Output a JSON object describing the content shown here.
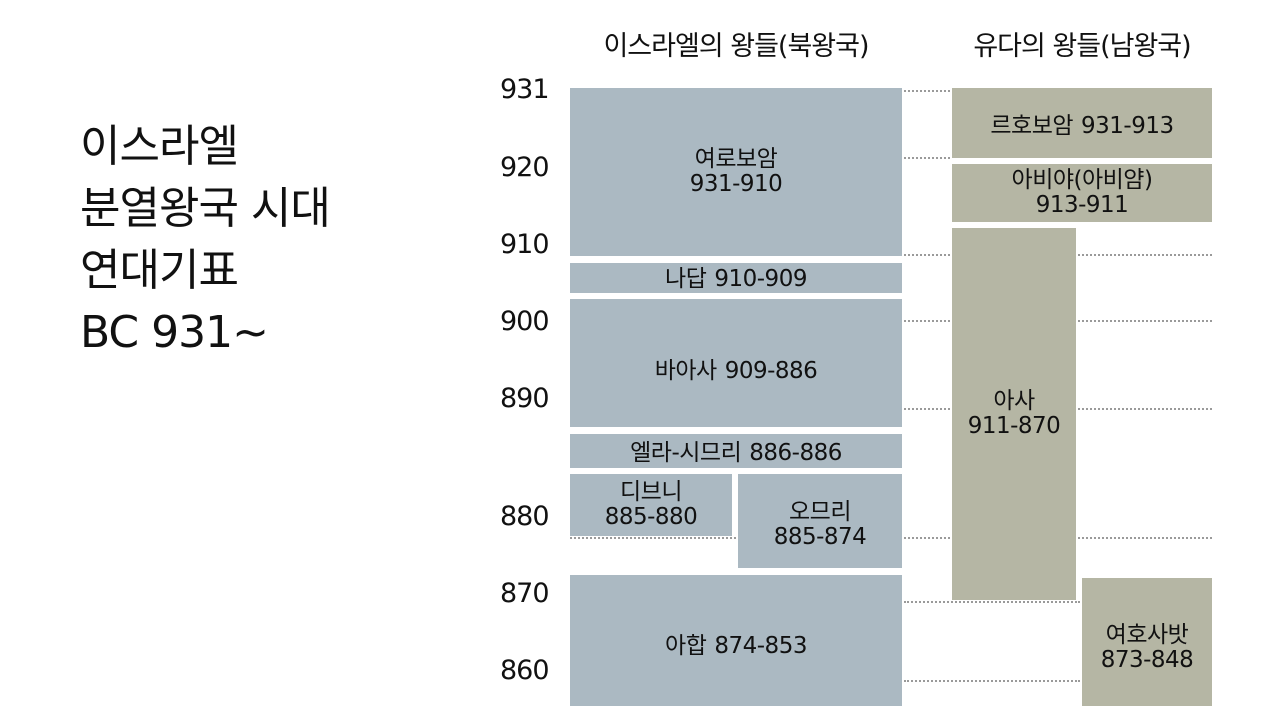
{
  "title_lines": [
    "이스라엘",
    "분열왕국 시대",
    "연대기표",
    "BC 931~"
  ],
  "headers": {
    "north": "이스라엘의 왕들(북왕국)",
    "south": "유다의 왕들(남왕국)"
  },
  "years": [
    "931",
    "920",
    "910",
    "900",
    "890",
    "880",
    "870",
    "860"
  ],
  "north_kings": [
    {
      "name": "여로보암",
      "reign": "931-910"
    },
    {
      "name": "나답",
      "reign": "910-909"
    },
    {
      "name": "바아사",
      "reign": "909-886"
    },
    {
      "name": "엘라-시므리",
      "reign": "886-886"
    },
    {
      "name": "디브니",
      "reign": "885-880"
    },
    {
      "name": "오므리",
      "reign": "885-874"
    },
    {
      "name": "아합",
      "reign": "874-853"
    }
  ],
  "south_kings": [
    {
      "name": "르호보암",
      "reign": "931-913"
    },
    {
      "name": "아비야(아비얌)",
      "reign": "913-911"
    },
    {
      "name": "아사",
      "reign": "911-870"
    },
    {
      "name": "여호사밧",
      "reign": "873-848"
    }
  ],
  "colors": {
    "north": "#abb9c2",
    "south": "#b5b6a4",
    "dots": "#9a9a9a"
  }
}
